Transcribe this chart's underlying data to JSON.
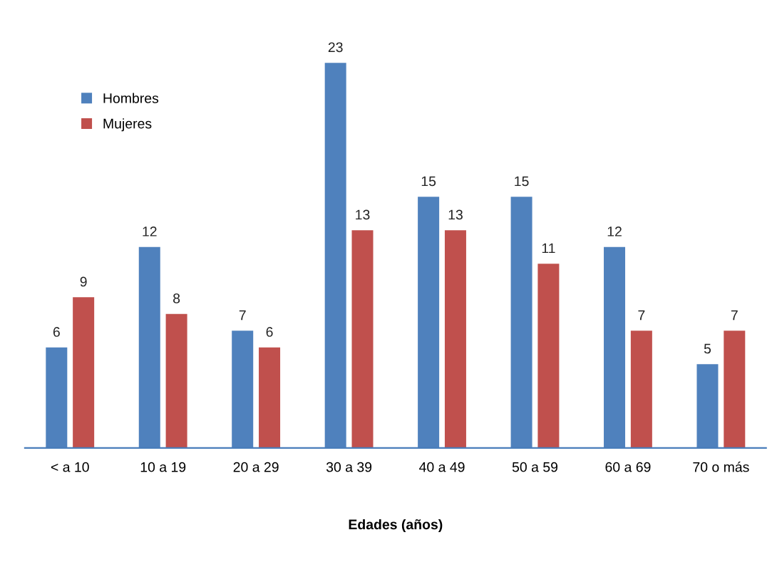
{
  "chart_data": {
    "type": "bar",
    "xlabel": "Edades (años)",
    "categories": [
      "< a 10",
      "10 a 19",
      "20 a 29",
      "30 a 39",
      "40 a 49",
      "50 a 59",
      "60 a 69",
      "70 o más"
    ],
    "series": [
      {
        "name": "Hombres",
        "color": "#4f81bd",
        "values": [
          6,
          12,
          7,
          23,
          15,
          15,
          12,
          5
        ]
      },
      {
        "name": "Mujeres",
        "color": "#c0504d",
        "values": [
          9,
          8,
          6,
          13,
          13,
          11,
          7,
          7
        ]
      }
    ],
    "data_labels": true,
    "legend": "top left",
    "grid": false
  }
}
